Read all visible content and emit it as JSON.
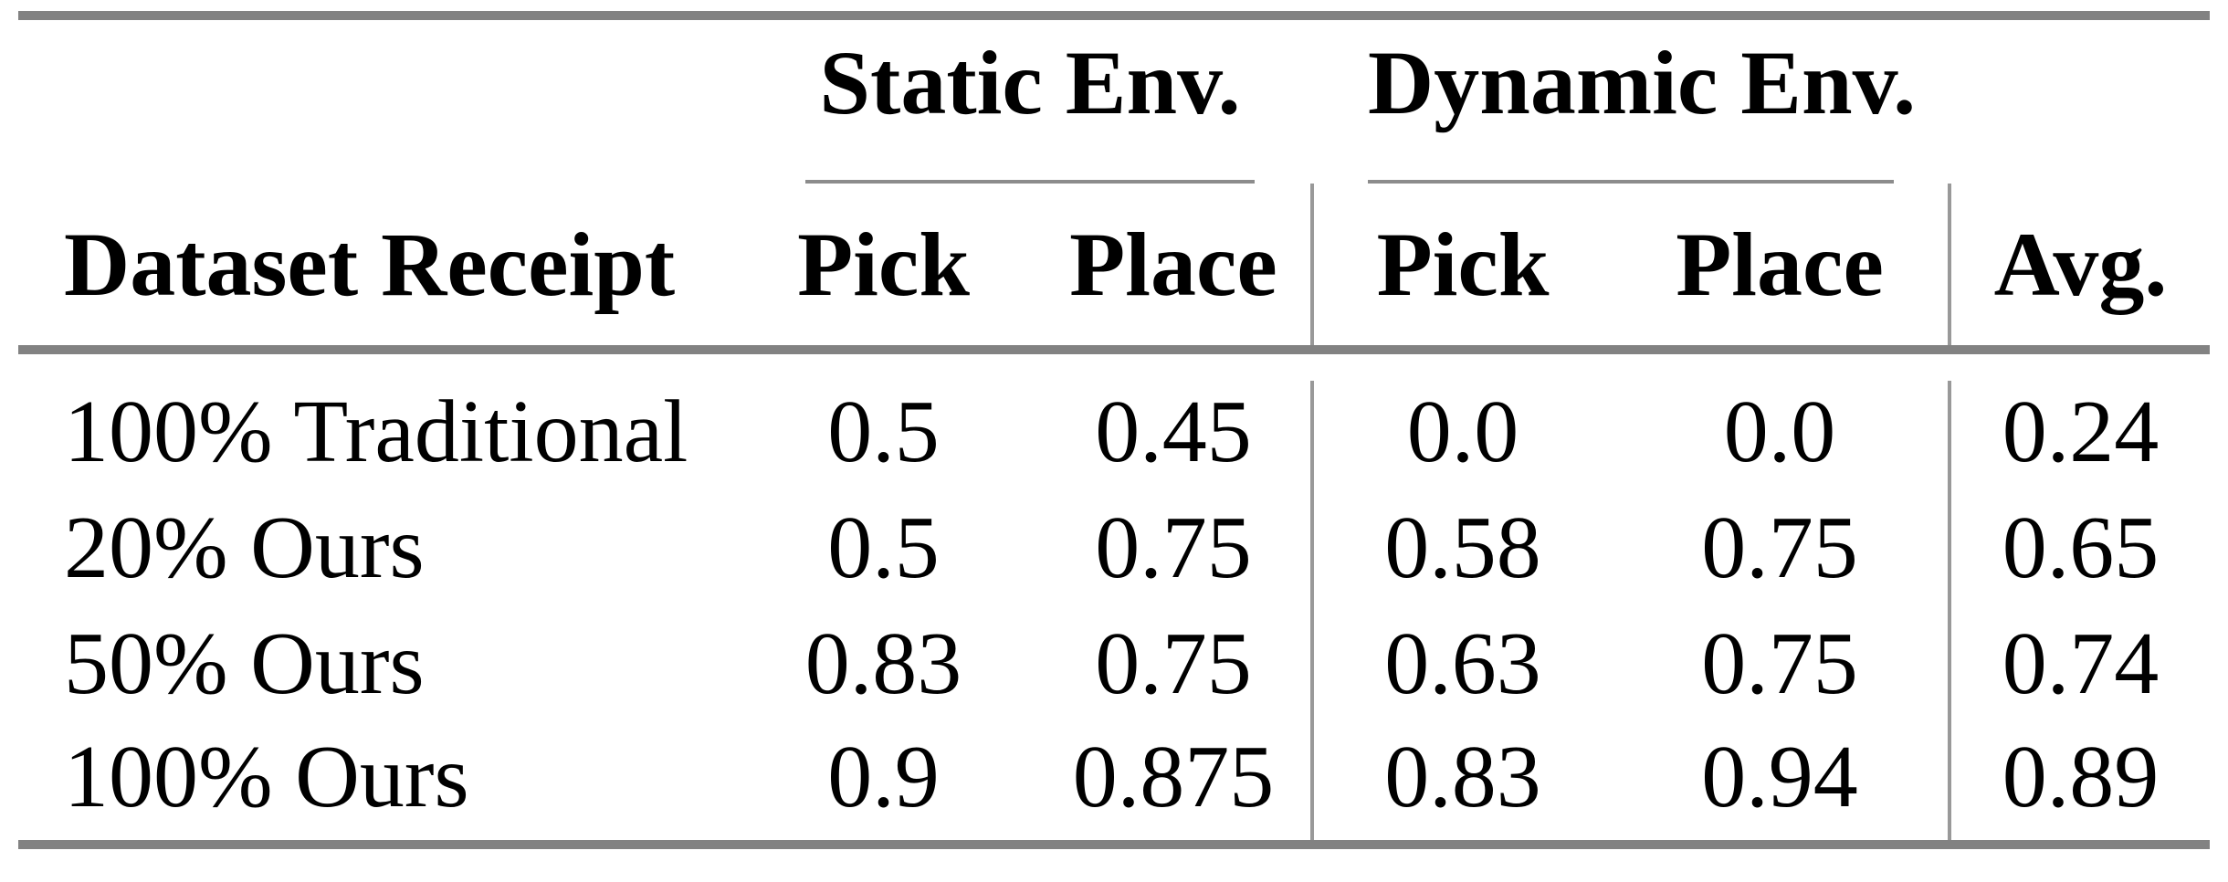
{
  "style": {
    "background": "#ffffff",
    "text_color": "#000000",
    "thick_rule_color": "#828282",
    "cmidrule_color": "#8c8c8c",
    "vertical_rule_color": "#999999"
  },
  "table": {
    "groups": {
      "static": "Static Env.",
      "dynamic": "Dynamic Env."
    },
    "headers": [
      "Dataset Receipt",
      "Pick",
      "Place",
      "Pick",
      "Place",
      "Avg."
    ],
    "rows": [
      [
        "100% Traditional",
        "0.5",
        "0.45",
        "0.0",
        "0.0",
        "0.24"
      ],
      [
        "20% Ours",
        "0.5",
        "0.75",
        "0.58",
        "0.75",
        "0.65"
      ],
      [
        "50% Ours",
        "0.83",
        "0.75",
        "0.63",
        "0.75",
        "0.74"
      ],
      [
        "100% Ours",
        "0.9",
        "0.875",
        "0.83",
        "0.94",
        "0.89"
      ]
    ]
  },
  "chart_data": {
    "type": "table",
    "row_header": "Dataset Receipt",
    "column_groups": [
      {
        "label": "Static Env.",
        "columns": [
          "Pick",
          "Place"
        ]
      },
      {
        "label": "Dynamic Env.",
        "columns": [
          "Pick",
          "Place"
        ]
      },
      {
        "label": "",
        "columns": [
          "Avg."
        ]
      }
    ],
    "rows": [
      {
        "dataset_receipt": "100% Traditional",
        "static_pick": 0.5,
        "static_place": 0.45,
        "dynamic_pick": 0.0,
        "dynamic_place": 0.0,
        "avg": 0.24
      },
      {
        "dataset_receipt": "20% Ours",
        "static_pick": 0.5,
        "static_place": 0.75,
        "dynamic_pick": 0.58,
        "dynamic_place": 0.75,
        "avg": 0.65
      },
      {
        "dataset_receipt": "50% Ours",
        "static_pick": 0.83,
        "static_place": 0.75,
        "dynamic_pick": 0.63,
        "dynamic_place": 0.75,
        "avg": 0.74
      },
      {
        "dataset_receipt": "100% Ours",
        "static_pick": 0.9,
        "static_place": 0.875,
        "dynamic_pick": 0.83,
        "dynamic_place": 0.94,
        "avg": 0.89
      }
    ]
  }
}
